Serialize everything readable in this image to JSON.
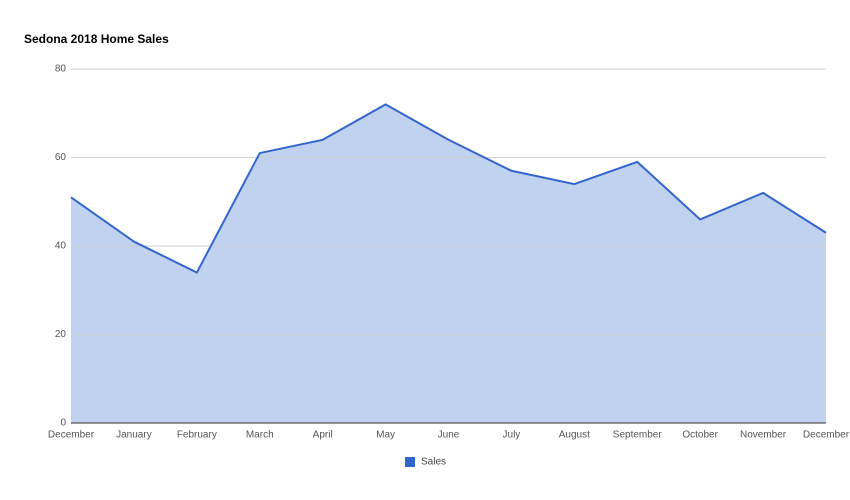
{
  "chart_data": {
    "type": "area",
    "title": "Sedona 2018 Home Sales",
    "categories": [
      "December",
      "January",
      "February",
      "March",
      "April",
      "May",
      "June",
      "July",
      "August",
      "September",
      "October",
      "November",
      "December"
    ],
    "series": [
      {
        "name": "Sales",
        "color": "#3366cc",
        "values": [
          51,
          41,
          34,
          61,
          64,
          72,
          64,
          57,
          54,
          59,
          46,
          52,
          43
        ]
      }
    ],
    "ylim": [
      0,
      80
    ],
    "yticks": [
      0,
      20,
      40,
      60,
      80
    ],
    "grid": true,
    "legend": "bottom"
  }
}
